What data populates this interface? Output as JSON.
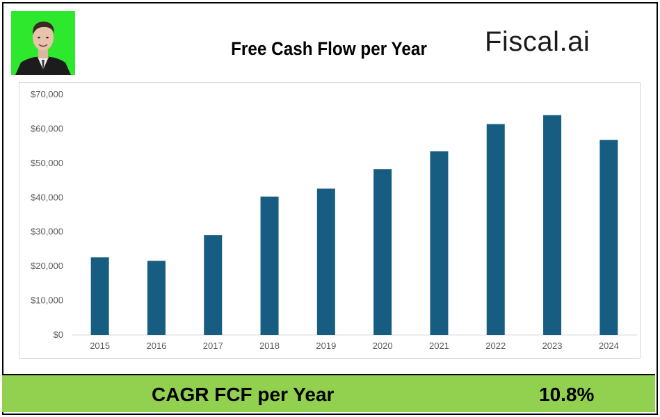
{
  "header": {
    "title": "Free Cash Flow per Year",
    "brand": "Fiscal.ai"
  },
  "colors": {
    "bar": "#175d82",
    "footer_bg": "#92d050",
    "avatar_bg": "#2ee82e"
  },
  "avatar": {
    "icon": "portrait-photo"
  },
  "chart_data": {
    "type": "bar",
    "title": "Free Cash Flow per Year",
    "categories": [
      "2015",
      "2016",
      "2017",
      "2018",
      "2019",
      "2020",
      "2021",
      "2022",
      "2023",
      "2024"
    ],
    "values": [
      22600,
      21600,
      29100,
      40300,
      42600,
      48300,
      53500,
      61400,
      64000,
      56800
    ],
    "ylim": [
      0,
      70000
    ],
    "yticks": [
      "$0",
      "$10,000",
      "$20,000",
      "$30,000",
      "$40,000",
      "$50,000",
      "$60,000",
      "$70,000"
    ],
    "ytick_values": [
      0,
      10000,
      20000,
      30000,
      40000,
      50000,
      60000,
      70000
    ],
    "grid": false,
    "xlabel": "",
    "ylabel": ""
  },
  "footer": {
    "label": "CAGR FCF per Year",
    "value": "10.8%"
  }
}
